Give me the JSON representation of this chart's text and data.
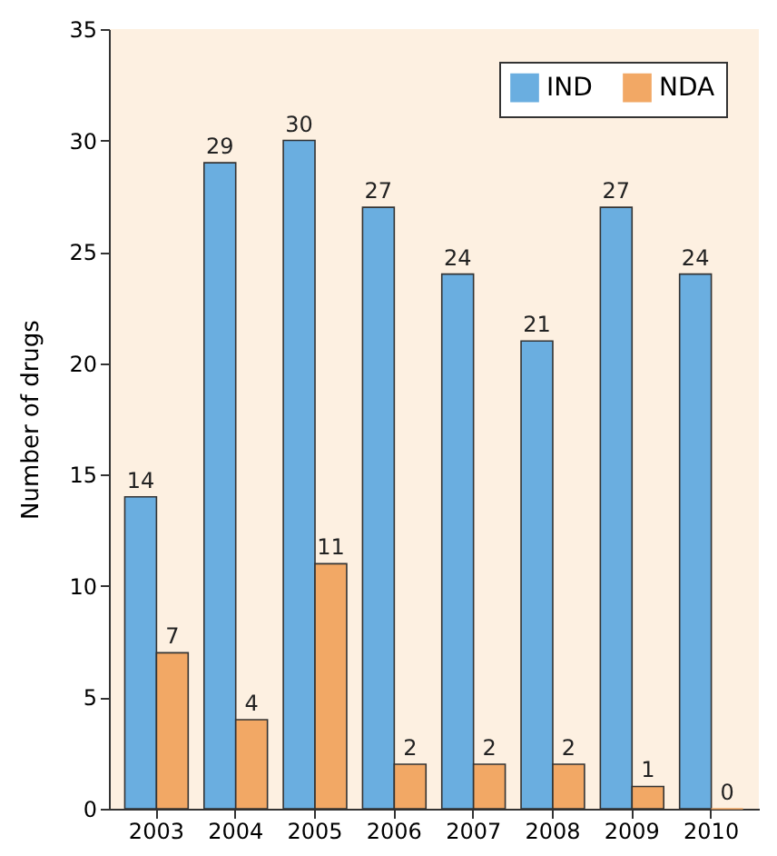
{
  "chart_data": {
    "type": "bar",
    "ylabel": "Number of drugs",
    "categories": [
      "2003",
      "2004",
      "2005",
      "2006",
      "2007",
      "2008",
      "2009",
      "2010"
    ],
    "series": [
      {
        "name": "IND",
        "color": "#6aaee0",
        "values": [
          14,
          29,
          30,
          27,
          24,
          21,
          27,
          24
        ]
      },
      {
        "name": "NDA",
        "color": "#f2a865",
        "values": [
          7,
          4,
          11,
          2,
          2,
          2,
          1,
          0
        ]
      }
    ],
    "ylim": [
      0,
      35
    ],
    "yticks": [
      0,
      5,
      10,
      15,
      20,
      25,
      30,
      35
    ],
    "grid": false,
    "legend": "top right",
    "data_labels": true
  }
}
